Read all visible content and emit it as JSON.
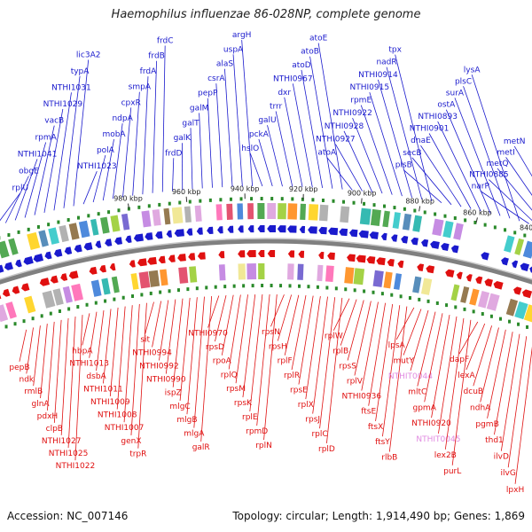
{
  "title": "Haemophilus influenzae 86-028NP, complete genome",
  "footer": {
    "accession": "Accession: NC_007146",
    "summary": "Topology: circular; Length: 1,914,490 bp; Genes: 1,869"
  },
  "colors": {
    "forward_strand": "#1a1acd",
    "reverse_strand": "#e01010",
    "rna_gene": "#e08ae0",
    "backbone": "#808080",
    "tick": "#2a8a2a"
  },
  "axis_ticks": [
    "980 kbp",
    "960 kbp",
    "940 kbp",
    "920 kbp",
    "900 kbp",
    "880 kbp",
    "860 kbp",
    "840 kbp"
  ],
  "forward_genes": [
    "rplU",
    "obgE",
    "NTHI1041",
    "rpmA",
    "vacB",
    "NTHI1029",
    "NTHI1031",
    "typA",
    "lic3A2",
    "NTHI1023",
    "polA",
    "mobA",
    "ndpA",
    "cpxR",
    "smpA",
    "frdA",
    "frdB",
    "frdC",
    "frdD",
    "galK",
    "galT",
    "galM",
    "pepP",
    "csrA",
    "alaS",
    "uspA",
    "argH",
    "hslO",
    "pckA",
    "galU",
    "trrr",
    "dxr",
    "NTHI0967",
    "atoD",
    "atoB",
    "atoE",
    "atoA",
    "NTHI0927",
    "NTHI0928",
    "NTHI0922",
    "rpmE",
    "NTHI0915",
    "NTHI0914",
    "nadR",
    "tpx",
    "plsB",
    "secB",
    "dnaE",
    "NTHI0901",
    "NTHI0893",
    "ostA",
    "surA",
    "plsC",
    "lysA",
    "narP",
    "NTHI0885",
    "metQ",
    "metI",
    "metN"
  ],
  "reverse_genes": [
    "pepB",
    "ndk",
    "rmlB",
    "glnA",
    "pdxH",
    "clpB",
    "NTHI1027",
    "NTHI1025",
    "NTHI1022",
    "hbpA",
    "NTHI1013",
    "dsbA",
    "NTHI1011",
    "NTHI1009",
    "NTHI1008",
    "NTHI1007",
    "genX",
    "trpR",
    "sit",
    "NTHI0994",
    "NTHI0992",
    "NTHI0990",
    "ispZ",
    "mlgC",
    "mlgB",
    "mlgA",
    "galR",
    "NTHI0970",
    "rpsD",
    "rpoA",
    "rplQ",
    "rpsM",
    "rpsK",
    "rplE",
    "rpmD",
    "rplN",
    "rpsN",
    "rpsH",
    "rplF",
    "rplR",
    "rpsE",
    "rplX",
    "rpsJ",
    "rplC",
    "rplD",
    "rplW",
    "rplB",
    "rpsS",
    "rplV",
    "NTHI0936",
    "ftsE",
    "ftsX",
    "ftsY",
    "rlbB",
    "lpsA",
    "mutY",
    "NTHIT0044",
    "mltC",
    "gpmA",
    "NTHI0920",
    "NTHIT0045",
    "lex2B",
    "purL",
    "dapF",
    "lexA",
    "dcuB",
    "ndhA",
    "pgmB",
    "thd1",
    "ilvD",
    "ilvG",
    "lpxH"
  ]
}
